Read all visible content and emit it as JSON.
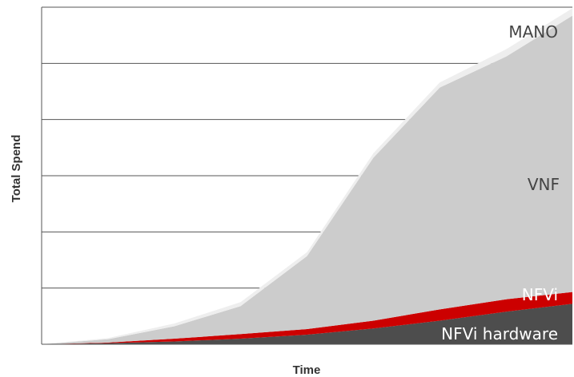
{
  "chart_data": {
    "type": "area",
    "stacked": true,
    "title": "",
    "xlabel": "Time",
    "ylabel": "Total Spend",
    "x": [
      0,
      1,
      2,
      3,
      4,
      5,
      6,
      7,
      8
    ],
    "xlim": [
      0,
      8
    ],
    "ylim": [
      0,
      6
    ],
    "grid": true,
    "x_tick_labels": false,
    "y_tick_labels": false,
    "legend": "labels-in-plot",
    "series": [
      {
        "name": "NFVi hardware",
        "color": "#4d4d4d",
        "values": [
          0,
          0.02,
          0.05,
          0.1,
          0.17,
          0.28,
          0.42,
          0.58,
          0.72
        ]
      },
      {
        "name": "NFVi",
        "color": "#cc0000",
        "values": [
          0,
          0.01,
          0.05,
          0.08,
          0.1,
          0.14,
          0.2,
          0.22,
          0.21
        ]
      },
      {
        "name": "VNF",
        "color": "#cccccc",
        "values": [
          0,
          0.06,
          0.22,
          0.5,
          1.3,
          2.9,
          3.95,
          4.32,
          4.92
        ]
      },
      {
        "name": "MANO",
        "color": "#eeeeee",
        "values": [
          0,
          0.02,
          0.05,
          0.07,
          0.07,
          0.08,
          0.09,
          0.13,
          0.13
        ]
      }
    ]
  },
  "colors": {
    "grid": "#555555",
    "label_dark": "#444444",
    "label_light": "#ffffff"
  }
}
